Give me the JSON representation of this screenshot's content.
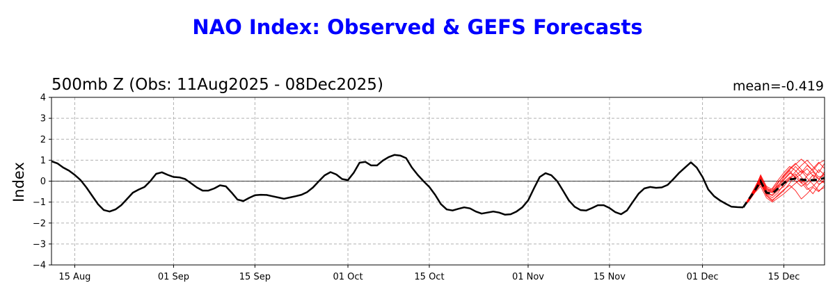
{
  "suptitle": "NAO Index: Observed & GEFS Forecasts",
  "left_title": "500mb Z (Obs: 11Aug2025 - 08Dec2025)",
  "right_title": "mean=-0.419",
  "colors": {
    "suptitle": "#0000ff",
    "observed": "#000000",
    "members": "#ff0000",
    "ensemble_mean": "#000000"
  },
  "chart_data": {
    "type": "line",
    "ylabel": "Index",
    "ylim": [
      -4,
      4
    ],
    "yticks": [
      -4,
      -3,
      -2,
      -1,
      0,
      1,
      2,
      3,
      4
    ],
    "ytick_labels": [
      "−4",
      "−3",
      "−2",
      "−1",
      "0",
      "1",
      "2",
      "3",
      "4"
    ],
    "xlim": [
      "2025-08-11",
      "2025-12-22"
    ],
    "xticks": [
      "2025-08-15",
      "2025-09-01",
      "2025-09-15",
      "2025-10-01",
      "2025-10-15",
      "2025-11-01",
      "2025-11-15",
      "2025-12-01",
      "2025-12-15"
    ],
    "xtick_labels": [
      "15 Aug",
      "01 Sep",
      "15 Sep",
      "01 Oct",
      "15 Oct",
      "01 Nov",
      "15 Nov",
      "01 Dec",
      "15 Dec"
    ],
    "grid": true,
    "series": [
      {
        "kind": "observed",
        "x": [
          "2025-08-11",
          "2025-08-12",
          "2025-08-13",
          "2025-08-14",
          "2025-08-15",
          "2025-08-16",
          "2025-08-17",
          "2025-08-18",
          "2025-08-19",
          "2025-08-20",
          "2025-08-21",
          "2025-08-22",
          "2025-08-23",
          "2025-08-24",
          "2025-08-25",
          "2025-08-26",
          "2025-08-27",
          "2025-08-28",
          "2025-08-29",
          "2025-08-30",
          "2025-08-31",
          "2025-09-01",
          "2025-09-02",
          "2025-09-03",
          "2025-09-04",
          "2025-09-05",
          "2025-09-06",
          "2025-09-07",
          "2025-09-08",
          "2025-09-09",
          "2025-09-10",
          "2025-09-11",
          "2025-09-12",
          "2025-09-13",
          "2025-09-14",
          "2025-09-15",
          "2025-09-16",
          "2025-09-17",
          "2025-09-18",
          "2025-09-19",
          "2025-09-20",
          "2025-09-21",
          "2025-09-22",
          "2025-09-23",
          "2025-09-24",
          "2025-09-25",
          "2025-09-26",
          "2025-09-27",
          "2025-09-28",
          "2025-09-29",
          "2025-09-30",
          "2025-10-01",
          "2025-10-02",
          "2025-10-03",
          "2025-10-04",
          "2025-10-05",
          "2025-10-06",
          "2025-10-07",
          "2025-10-08",
          "2025-10-09",
          "2025-10-10",
          "2025-10-11",
          "2025-10-12",
          "2025-10-13",
          "2025-10-14",
          "2025-10-15",
          "2025-10-16",
          "2025-10-17",
          "2025-10-18",
          "2025-10-19",
          "2025-10-20",
          "2025-10-21",
          "2025-10-22",
          "2025-10-23",
          "2025-10-24",
          "2025-10-25",
          "2025-10-26",
          "2025-10-27",
          "2025-10-28",
          "2025-10-29",
          "2025-10-30",
          "2025-10-31",
          "2025-11-01",
          "2025-11-02",
          "2025-11-03",
          "2025-11-04",
          "2025-11-05",
          "2025-11-06",
          "2025-11-07",
          "2025-11-08",
          "2025-11-09",
          "2025-11-10",
          "2025-11-11",
          "2025-11-12",
          "2025-11-13",
          "2025-11-14",
          "2025-11-15",
          "2025-11-16",
          "2025-11-17",
          "2025-11-18",
          "2025-11-19",
          "2025-11-20",
          "2025-11-21",
          "2025-11-22",
          "2025-11-23",
          "2025-11-24",
          "2025-11-25",
          "2025-11-26",
          "2025-11-27",
          "2025-11-28",
          "2025-11-29",
          "2025-11-30",
          "2025-12-01",
          "2025-12-02",
          "2025-12-03",
          "2025-12-04",
          "2025-12-05",
          "2025-12-06",
          "2025-12-07",
          "2025-12-08"
        ],
        "y": [
          0.95,
          0.85,
          0.65,
          0.5,
          0.3,
          0.05,
          -0.3,
          -0.7,
          -1.1,
          -1.38,
          -1.45,
          -1.35,
          -1.15,
          -0.85,
          -0.55,
          -0.4,
          -0.28,
          0.0,
          0.35,
          0.42,
          0.3,
          0.2,
          0.18,
          0.1,
          -0.1,
          -0.3,
          -0.45,
          -0.45,
          -0.35,
          -0.2,
          -0.25,
          -0.55,
          -0.88,
          -0.95,
          -0.8,
          -0.67,
          -0.65,
          -0.66,
          -0.72,
          -0.78,
          -0.84,
          -0.78,
          -0.72,
          -0.65,
          -0.52,
          -0.3,
          0.0,
          0.28,
          0.43,
          0.32,
          0.1,
          0.05,
          0.4,
          0.88,
          0.92,
          0.75,
          0.75,
          0.98,
          1.15,
          1.25,
          1.22,
          1.1,
          0.65,
          0.3,
          0.0,
          -0.28,
          -0.65,
          -1.1,
          -1.35,
          -1.4,
          -1.32,
          -1.25,
          -1.3,
          -1.45,
          -1.55,
          -1.5,
          -1.45,
          -1.5,
          -1.6,
          -1.58,
          -1.45,
          -1.25,
          -0.92,
          -0.35,
          0.2,
          0.38,
          0.28,
          0.0,
          -0.45,
          -0.92,
          -1.22,
          -1.38,
          -1.4,
          -1.28,
          -1.15,
          -1.15,
          -1.28,
          -1.48,
          -1.58,
          -1.4,
          -1.0,
          -0.6,
          -0.35,
          -0.28,
          -0.32,
          -0.3,
          -0.18,
          0.1,
          0.4,
          0.65,
          0.9,
          0.65,
          0.2,
          -0.4,
          -0.72,
          -0.92,
          -1.08,
          -1.22,
          -1.24,
          -1.25
        ]
      }
    ],
    "forecast": {
      "x": [
        "2025-12-08",
        "2025-12-09",
        "2025-12-10",
        "2025-12-11",
        "2025-12-12",
        "2025-12-13",
        "2025-12-14",
        "2025-12-15",
        "2025-12-16",
        "2025-12-17",
        "2025-12-18",
        "2025-12-19",
        "2025-12-20",
        "2025-12-21",
        "2025-12-22"
      ],
      "mean": [
        -1.25,
        -0.85,
        -0.45,
        0.0,
        -0.55,
        -0.6,
        -0.35,
        -0.1,
        0.08,
        0.12,
        0.08,
        0.05,
        0.05,
        0.08,
        0.15
      ],
      "members": [
        [
          -1.25,
          -0.8,
          -0.3,
          0.25,
          -0.35,
          -0.55,
          -0.3,
          0.05,
          0.35,
          0.7,
          0.4,
          0.75,
          0.5,
          0.2,
          0.25
        ],
        [
          -1.25,
          -0.9,
          -0.5,
          -0.1,
          -0.7,
          -0.95,
          -0.65,
          -0.4,
          -0.2,
          -0.45,
          -0.85,
          -0.6,
          -0.3,
          -0.5,
          -0.2
        ],
        [
          -1.25,
          -0.85,
          -0.4,
          0.1,
          -0.45,
          -0.55,
          -0.1,
          0.3,
          0.6,
          0.85,
          0.55,
          0.3,
          0.6,
          0.9,
          0.6
        ],
        [
          -1.25,
          -0.95,
          -0.55,
          -0.25,
          -0.8,
          -1.0,
          -0.8,
          -0.6,
          -0.35,
          -0.1,
          0.1,
          -0.3,
          -0.6,
          -0.2,
          0.1
        ],
        [
          -1.25,
          -0.8,
          -0.35,
          0.2,
          -0.4,
          -0.45,
          -0.2,
          0.1,
          0.4,
          0.2,
          -0.1,
          0.25,
          0.45,
          0.1,
          -0.1
        ],
        [
          -1.25,
          -0.88,
          -0.5,
          -0.05,
          -0.6,
          -0.8,
          -0.55,
          -0.15,
          0.15,
          0.45,
          0.75,
          1.0,
          0.7,
          0.4,
          0.85
        ],
        [
          -1.25,
          -0.82,
          -0.42,
          0.05,
          -0.5,
          -0.35,
          0.05,
          0.4,
          0.7,
          0.5,
          0.2,
          -0.2,
          0.1,
          0.55,
          0.3
        ],
        [
          -1.25,
          -0.9,
          -0.45,
          0.0,
          -0.55,
          -0.7,
          -0.45,
          -0.25,
          0.1,
          0.35,
          -0.05,
          -0.4,
          -0.25,
          0.05,
          0.45
        ],
        [
          -1.25,
          -0.85,
          -0.4,
          0.15,
          -0.3,
          -0.5,
          -0.25,
          0.2,
          0.5,
          0.15,
          0.35,
          0.6,
          0.25,
          -0.15,
          0.0
        ],
        [
          -1.25,
          -0.92,
          -0.52,
          -0.15,
          -0.65,
          -0.9,
          -0.7,
          -0.45,
          -0.1,
          0.25,
          0.5,
          0.15,
          -0.15,
          -0.45,
          -0.3
        ],
        [
          -1.25,
          -0.83,
          -0.38,
          0.3,
          -0.25,
          -0.4,
          -0.05,
          0.25,
          0.55,
          0.8,
          1.05,
          0.8,
          0.5,
          0.85,
          1.0
        ],
        [
          -1.25,
          -0.87,
          -0.48,
          -0.05,
          -0.6,
          -0.65,
          -0.35,
          -0.05,
          0.2,
          0.0,
          -0.25,
          -0.05,
          0.3,
          0.1,
          0.35
        ]
      ]
    }
  }
}
